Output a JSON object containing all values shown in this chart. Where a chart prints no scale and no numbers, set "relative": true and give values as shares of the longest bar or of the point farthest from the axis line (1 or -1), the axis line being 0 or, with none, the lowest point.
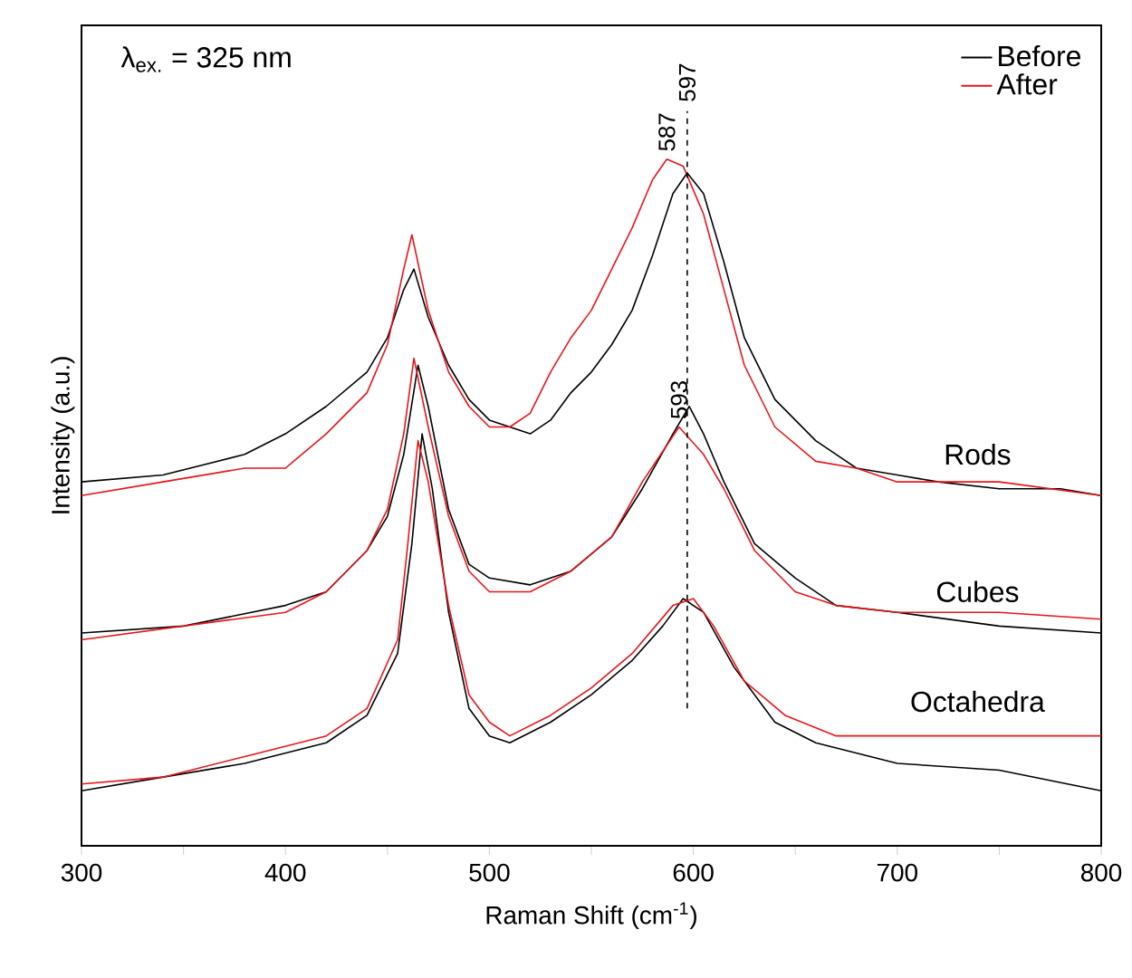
{
  "chart_data": {
    "type": "line",
    "relative": true,
    "xlabel": "Raman Shift (cm$^{-1}$)",
    "ylabel": "Intensity (a.u.)",
    "xlim": [
      300,
      800
    ],
    "xticks": [
      300,
      {
        "value": 350,
        "label": null
      },
      400,
      {
        "value": 450,
        "label": null
      },
      500,
      {
        "value": 550,
        "label": null
      },
      600,
      {
        "value": 650,
        "label": null
      },
      700,
      {
        "value": 750,
        "label": null
      },
      800
    ],
    "tick_labels": "x",
    "legend": "top right",
    "marker": "none",
    "line_style": "solid",
    "grid": false,
    "annotations": [
      "λ$_{ex.}$ = 325 nm",
      {
        "text": "587",
        "x": 587,
        "y": 1.0
      },
      {
        "text": "593",
        "x": 593,
        "y": 0.61
      },
      {
        "text": "Rods",
        "x": 750,
        "y": 0.52
      },
      {
        "text": "Cubes",
        "x": 750,
        "y": 0.32
      },
      {
        "text": "Octahedra",
        "x": 750,
        "y": 0.16
      }
    ],
    "ref_lines": [
      {
        "axis": "x",
        "value": 597,
        "label": "597",
        "line_style": "dashed",
        "color": "#000000"
      }
    ],
    "series": [
      {
        "name": "Before",
        "color": "#000000",
        "x": [
          300,
          340,
          380,
          400,
          420,
          440,
          450,
          458,
          463,
          470,
          480,
          490,
          500,
          510,
          520,
          530,
          540,
          550,
          560,
          570,
          580,
          590,
          597,
          605,
          615,
          625,
          640,
          660,
          680,
          700,
          720,
          750,
          780,
          800
        ],
        "values": [
          0.53,
          0.54,
          0.57,
          0.6,
          0.64,
          0.69,
          0.74,
          0.81,
          0.84,
          0.77,
          0.7,
          0.65,
          0.62,
          0.61,
          0.6,
          0.62,
          0.66,
          0.69,
          0.73,
          0.78,
          0.86,
          0.95,
          0.98,
          0.95,
          0.85,
          0.74,
          0.65,
          0.59,
          0.55,
          0.54,
          0.53,
          0.52,
          0.52,
          0.51
        ]
      },
      {
        "name": "After",
        "color": "#e8141a",
        "x": [
          300,
          340,
          380,
          400,
          420,
          440,
          450,
          458,
          462,
          470,
          480,
          490,
          500,
          510,
          520,
          530,
          540,
          550,
          560,
          570,
          580,
          587,
          595,
          605,
          615,
          625,
          640,
          660,
          680,
          700,
          750,
          800
        ],
        "values": [
          0.51,
          0.53,
          0.55,
          0.55,
          0.6,
          0.66,
          0.73,
          0.84,
          0.89,
          0.78,
          0.69,
          0.64,
          0.61,
          0.61,
          0.63,
          0.69,
          0.74,
          0.78,
          0.84,
          0.9,
          0.97,
          1.0,
          0.99,
          0.92,
          0.81,
          0.7,
          0.61,
          0.56,
          0.55,
          0.53,
          0.53,
          0.51
        ]
      },
      {
        "color": "#000000",
        "x": [
          300,
          350,
          400,
          420,
          440,
          450,
          458,
          465,
          470,
          480,
          490,
          500,
          520,
          540,
          560,
          575,
          590,
          598,
          605,
          615,
          630,
          650,
          670,
          700,
          750,
          800
        ],
        "values": [
          0.31,
          0.32,
          0.35,
          0.37,
          0.43,
          0.48,
          0.57,
          0.7,
          0.64,
          0.49,
          0.41,
          0.39,
          0.38,
          0.4,
          0.45,
          0.52,
          0.6,
          0.64,
          0.6,
          0.53,
          0.44,
          0.39,
          0.35,
          0.34,
          0.32,
          0.31
        ]
      },
      {
        "color": "#e8141a",
        "x": [
          300,
          350,
          400,
          420,
          440,
          450,
          458,
          463,
          470,
          480,
          490,
          500,
          520,
          540,
          560,
          575,
          593,
          605,
          615,
          630,
          650,
          670,
          700,
          750,
          800
        ],
        "values": [
          0.3,
          0.32,
          0.34,
          0.37,
          0.43,
          0.49,
          0.6,
          0.71,
          0.61,
          0.48,
          0.4,
          0.37,
          0.37,
          0.4,
          0.45,
          0.53,
          0.61,
          0.57,
          0.52,
          0.43,
          0.37,
          0.35,
          0.34,
          0.34,
          0.33
        ]
      },
      {
        "color": "#000000",
        "x": [
          300,
          340,
          380,
          420,
          440,
          455,
          462,
          467,
          472,
          480,
          490,
          500,
          510,
          530,
          550,
          570,
          585,
          595,
          605,
          620,
          640,
          660,
          700,
          750,
          800
        ],
        "values": [
          0.08,
          0.1,
          0.12,
          0.15,
          0.19,
          0.28,
          0.44,
          0.6,
          0.52,
          0.34,
          0.2,
          0.16,
          0.15,
          0.18,
          0.22,
          0.27,
          0.32,
          0.36,
          0.34,
          0.26,
          0.18,
          0.15,
          0.12,
          0.11,
          0.08
        ]
      },
      {
        "color": "#e8141a",
        "x": [
          300,
          340,
          380,
          420,
          440,
          455,
          460,
          465,
          470,
          480,
          490,
          500,
          510,
          530,
          550,
          570,
          590,
          600,
          610,
          625,
          645,
          670,
          700,
          750,
          800
        ],
        "values": [
          0.09,
          0.1,
          0.13,
          0.16,
          0.2,
          0.3,
          0.44,
          0.59,
          0.53,
          0.35,
          0.22,
          0.18,
          0.16,
          0.19,
          0.23,
          0.28,
          0.35,
          0.36,
          0.32,
          0.24,
          0.19,
          0.16,
          0.16,
          0.16,
          0.16
        ]
      }
    ]
  }
}
